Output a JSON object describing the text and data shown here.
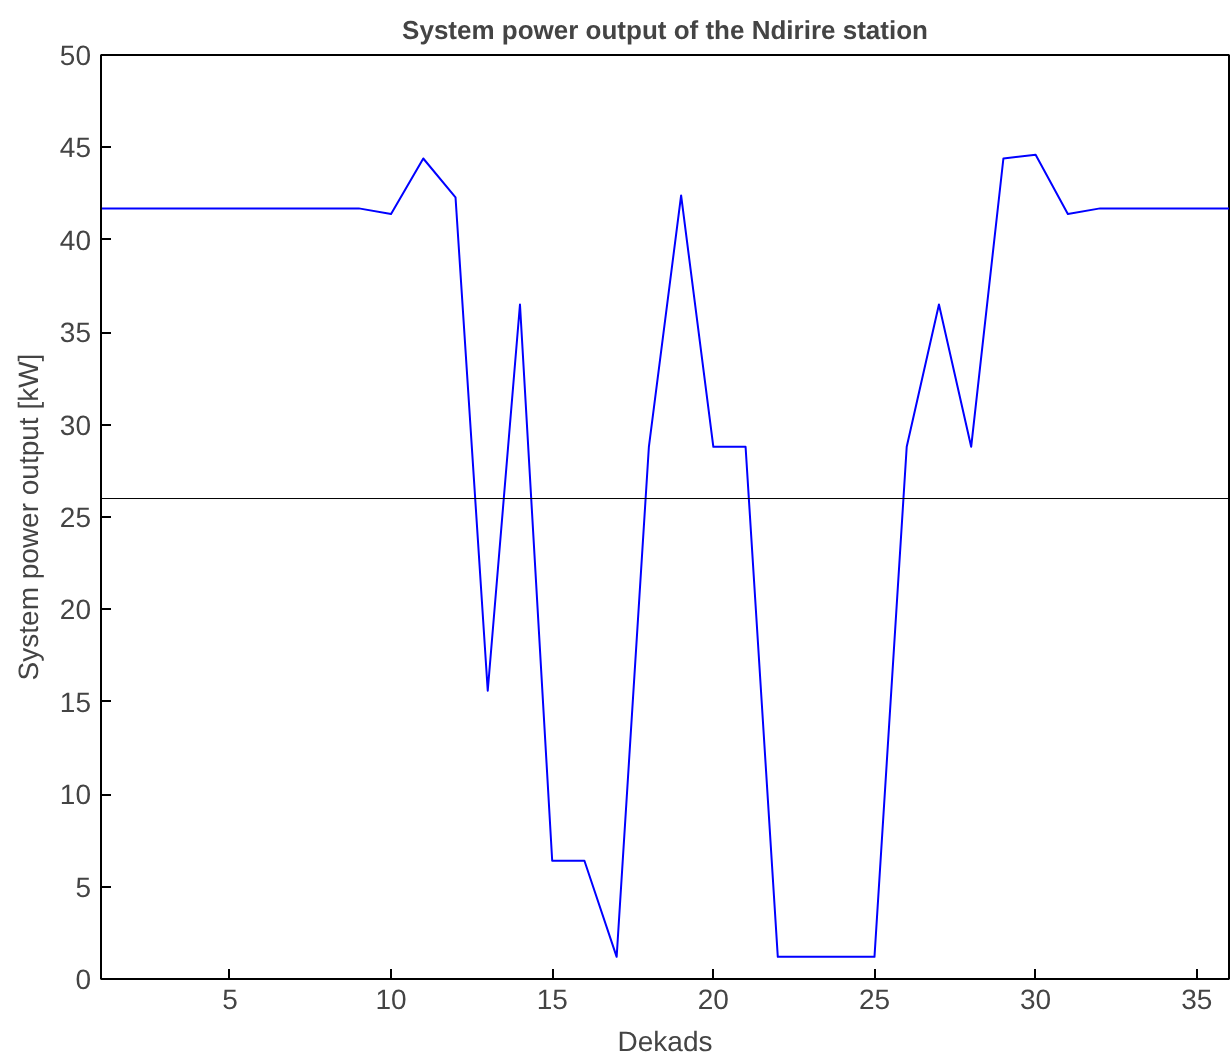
{
  "chart_data": {
    "type": "line",
    "title": "System power output of the Ndirire station",
    "xlabel": "Dekads",
    "ylabel": "System power output [kW]",
    "x": [
      1,
      2,
      3,
      4,
      5,
      6,
      7,
      8,
      9,
      10,
      11,
      12,
      13,
      14,
      15,
      16,
      17,
      18,
      19,
      20,
      21,
      22,
      23,
      24,
      25,
      26,
      27,
      28,
      29,
      30,
      31,
      32,
      33,
      34,
      35,
      36
    ],
    "series": [
      {
        "color": "#0000ff",
        "values": [
          41.7,
          41.7,
          41.7,
          41.7,
          41.7,
          41.7,
          41.7,
          41.7,
          41.7,
          41.4,
          44.4,
          42.3,
          15.6,
          36.5,
          6.4,
          6.4,
          1.2,
          28.8,
          42.4,
          28.8,
          28.8,
          1.2,
          1.2,
          1.2,
          1.2,
          28.8,
          36.5,
          28.8,
          44.4,
          44.6,
          41.4,
          41.7,
          41.7,
          41.7,
          41.7,
          41.7
        ]
      }
    ],
    "xlim": [
      1,
      36
    ],
    "ylim": [
      0,
      50
    ],
    "xticks": [
      5,
      10,
      15,
      20,
      25,
      30,
      35
    ],
    "yticks": [
      0,
      5,
      10,
      15,
      20,
      25,
      30,
      35,
      40,
      45,
      50
    ],
    "ref_lines": [
      {
        "axis": "y",
        "value": 26,
        "color": "#000000"
      }
    ],
    "grid": false,
    "marker": "none",
    "line_style": "solid"
  }
}
